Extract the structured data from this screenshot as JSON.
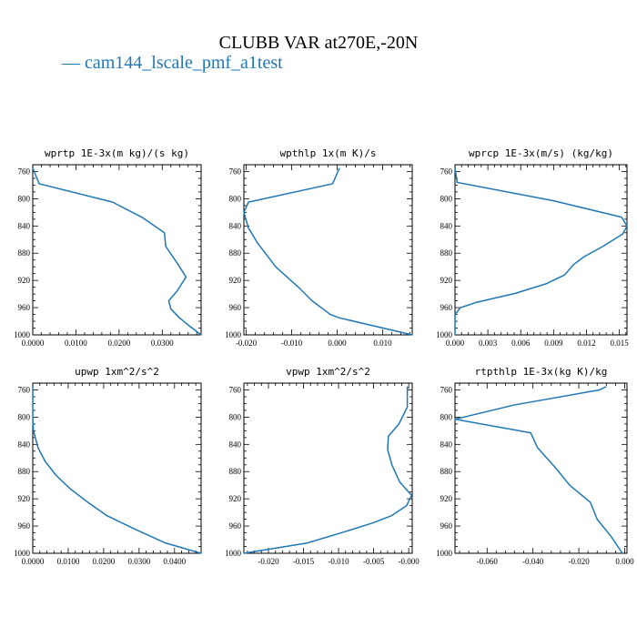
{
  "title": "CLUBB VAR at270E,-20N",
  "legend": {
    "symbol": "—",
    "label": "cam144_lscale_pmf_a1test",
    "color": "#1f77b4"
  },
  "chart_data": [
    {
      "type": "line",
      "title": "wprtp  1E-3x(m kg)/(s kg)",
      "xlim": [
        0.0,
        0.039
      ],
      "ylim": [
        1000,
        750
      ],
      "xticks": [
        0.0,
        0.01,
        0.02,
        0.03
      ],
      "xtick_labels": [
        "0.0000",
        "0.0100",
        "0.0200",
        "0.0300"
      ],
      "yticks": [
        760,
        800,
        840,
        880,
        920,
        960,
        1000
      ],
      "ytick_labels": [
        "760",
        "800",
        "840",
        "880",
        "920",
        "960",
        "1000"
      ],
      "grid": false,
      "series": [
        {
          "color": "#1f77b4",
          "x": [
            0.0,
            0.0015,
            0.0185,
            0.0255,
            0.0305,
            0.0308,
            0.0335,
            0.0355,
            0.0335,
            0.0315,
            0.032,
            0.034,
            0.0365,
            0.039
          ],
          "y": [
            755,
            778,
            805,
            828,
            850,
            870,
            895,
            915,
            935,
            950,
            962,
            975,
            988,
            1000
          ]
        }
      ]
    },
    {
      "type": "line",
      "title": "wpthlp  1x(m K)/s",
      "xlim": [
        -0.0205,
        0.0165
      ],
      "ylim": [
        1000,
        750
      ],
      "xticks": [
        -0.02,
        -0.01,
        0.0,
        0.01
      ],
      "xtick_labels": [
        "-0.020",
        "-0.010",
        "0.000",
        "0.010"
      ],
      "yticks": [
        760,
        800,
        840,
        880,
        920,
        960,
        1000
      ],
      "ytick_labels": [
        "760",
        "800",
        "840",
        "880",
        "920",
        "960",
        "1000"
      ],
      "grid": false,
      "series": [
        {
          "color": "#1f77b4",
          "x": [
            0.0005,
            -0.001,
            -0.0195,
            -0.0205,
            -0.0195,
            -0.0175,
            -0.0135,
            -0.0085,
            -0.0055,
            -0.0035,
            -0.0015,
            0.0005,
            0.0165
          ],
          "y": [
            755,
            778,
            805,
            820,
            843,
            865,
            900,
            930,
            950,
            960,
            970,
            975,
            1000
          ]
        }
      ]
    },
    {
      "type": "line",
      "title": "wprcp  1E-3x(m/s) (kg/kg)",
      "xlim": [
        0.0,
        0.0157
      ],
      "ylim": [
        1000,
        750
      ],
      "xticks": [
        0.0,
        0.003,
        0.006,
        0.009,
        0.012,
        0.015
      ],
      "xtick_labels": [
        "0.000",
        "0.003",
        "0.006",
        "0.009",
        "0.012",
        "0.015"
      ],
      "yticks": [
        760,
        800,
        840,
        880,
        920,
        960,
        1000
      ],
      "ytick_labels": [
        "760",
        "800",
        "840",
        "880",
        "920",
        "960",
        "1000"
      ],
      "grid": false,
      "series": [
        {
          "color": "#1f77b4",
          "x": [
            0.0,
            0.0002,
            0.009,
            0.0152,
            0.0157,
            0.0153,
            0.0135,
            0.0118,
            0.0108,
            0.01,
            0.0083,
            0.0055,
            0.002,
            0.0005,
            0.0,
            0.0
          ],
          "y": [
            755,
            776,
            803,
            827,
            840,
            852,
            870,
            885,
            897,
            912,
            925,
            939,
            952,
            960,
            970,
            1000
          ]
        }
      ]
    },
    {
      "type": "line",
      "title": "upwp  1xm^2/s^2",
      "xlim": [
        0.0,
        0.0475
      ],
      "ylim": [
        1000,
        750
      ],
      "xticks": [
        0.0,
        0.01,
        0.02,
        0.03,
        0.04
      ],
      "xtick_labels": [
        "0.0000",
        "0.0100",
        "0.0200",
        "0.0300",
        "0.0400"
      ],
      "yticks": [
        760,
        800,
        840,
        880,
        920,
        960,
        1000
      ],
      "ytick_labels": [
        "760",
        "800",
        "840",
        "880",
        "920",
        "960",
        "1000"
      ],
      "grid": false,
      "series": [
        {
          "color": "#1f77b4",
          "x": [
            0.0,
            0.0,
            0.0002,
            0.0015,
            0.0035,
            0.0065,
            0.0105,
            0.0155,
            0.021,
            0.029,
            0.0375,
            0.0475
          ],
          "y": [
            755,
            800,
            820,
            845,
            865,
            885,
            905,
            925,
            945,
            965,
            985,
            1000
          ]
        }
      ]
    },
    {
      "type": "line",
      "title": "vpwp  1xm^2/s^2",
      "xlim": [
        -0.0235,
        0.0005
      ],
      "ylim": [
        1000,
        750
      ],
      "xticks": [
        -0.02,
        -0.015,
        -0.01,
        -0.005,
        0.0
      ],
      "xtick_labels": [
        "-0.020",
        "-0.015",
        "-0.010",
        "-0.005",
        "-0.000"
      ],
      "yticks": [
        760,
        800,
        840,
        880,
        920,
        960,
        1000
      ],
      "ytick_labels": [
        "760",
        "800",
        "840",
        "880",
        "920",
        "960",
        "1000"
      ],
      "grid": false,
      "series": [
        {
          "color": "#1f77b4",
          "x": [
            -0.0002,
            -0.0002,
            -0.0014,
            -0.0029,
            -0.003,
            -0.0024,
            -0.0013,
            0.0004,
            -0.0003,
            -0.0025,
            -0.005,
            -0.009,
            -0.0145,
            -0.0235
          ],
          "y": [
            755,
            785,
            810,
            828,
            848,
            870,
            895,
            915,
            930,
            945,
            955,
            968,
            985,
            1000
          ]
        }
      ]
    },
    {
      "type": "line",
      "title": "rtpthlp  1E-3x(kg K)/kg",
      "xlim": [
        -0.074,
        0.001
      ],
      "ylim": [
        1000,
        750
      ],
      "xticks": [
        -0.06,
        -0.04,
        -0.02,
        0.0
      ],
      "xtick_labels": [
        "-0.060",
        "-0.040",
        "-0.020",
        "0.000"
      ],
      "yticks": [
        760,
        800,
        840,
        880,
        920,
        960,
        1000
      ],
      "ytick_labels": [
        "760",
        "800",
        "840",
        "880",
        "920",
        "960",
        "1000"
      ],
      "grid": false,
      "series": [
        {
          "color": "#1f77b4",
          "x": [
            -0.008,
            -0.011,
            -0.048,
            -0.074,
            -0.041,
            -0.038,
            -0.03,
            -0.024,
            -0.015,
            -0.012,
            -0.006,
            -0.001
          ],
          "y": [
            755,
            760,
            782,
            803,
            823,
            845,
            875,
            900,
            925,
            950,
            975,
            1000
          ]
        }
      ]
    }
  ]
}
